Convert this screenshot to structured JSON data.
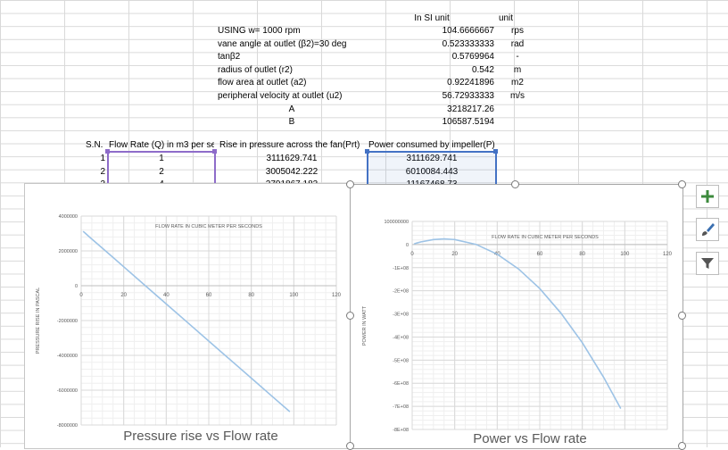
{
  "sheet": {
    "header_si": "In SI unit",
    "header_unit": "unit",
    "params": [
      {
        "label": "USING w= 1000 rpm",
        "value": "104.6666667",
        "unit": "rps"
      },
      {
        "label": "vane angle at outlet (β2)=30 deg",
        "value": "0.523333333",
        "unit": "rad"
      },
      {
        "label": "tanβ2",
        "value": "0.5769964",
        "unit": "-"
      },
      {
        "label": "radius of outlet (r2)",
        "value": "0.542",
        "unit": "m"
      },
      {
        "label": "flow area at outlet (a2)",
        "value": "0.92241896",
        "unit": "m2"
      },
      {
        "label": "peripheral velocity at outlet (u2)",
        "value": "56.72933333",
        "unit": "m/s"
      },
      {
        "label": "A",
        "value": "3218217.26",
        "unit": ""
      },
      {
        "label": "B",
        "value": "106587.5194",
        "unit": ""
      }
    ],
    "table_headers": [
      "S.N.",
      "Flow Rate (Q) in m3 per se",
      "Rise in pressure across the fan(Prt)",
      "Power consumed by impeller(P)"
    ],
    "rows": [
      [
        "1",
        "1",
        "3111629.741",
        "3111629.741"
      ],
      [
        "2",
        "2",
        "3005042.222",
        "6010084.443"
      ],
      [
        "3",
        "4",
        "2791867.183",
        "11167468.73"
      ]
    ]
  },
  "side_buttons": [
    {
      "name": "add-chart-element",
      "icon": "plus-icon",
      "color": "#3c8a3c"
    },
    {
      "name": "chart-styles",
      "icon": "paintbrush-icon",
      "color": "#3a6fb0"
    },
    {
      "name": "chart-filters",
      "icon": "filter-icon",
      "color": "#555555"
    }
  ],
  "chart_data": [
    {
      "type": "line",
      "title": "FLOW RATE IN CUBIC METER PER SECONDS",
      "caption": "Pressure rise vs Flow rate",
      "xlabel": "",
      "ylabel": "PRESSURE RISE IN PASCAL",
      "xlim": [
        0,
        120
      ],
      "ylim": [
        -8000000,
        4000000
      ],
      "x_ticks": [
        "0",
        "20",
        "40",
        "60",
        "80",
        "100",
        "120"
      ],
      "y_ticks": [
        "4000000",
        "2000000",
        "0",
        "-2000000",
        "-4000000",
        "-6000000",
        "-8000000"
      ],
      "grid": true,
      "series": [
        {
          "x": [
            1,
            2,
            4,
            10,
            20,
            30,
            40,
            50,
            60,
            70,
            80,
            90,
            98
          ],
          "y": [
            3111629.741,
            3005042.222,
            2791867.183,
            2152341.8,
            1086467,
            20592,
            -1045283,
            -2111158,
            -3177033,
            -4242908,
            -5308783,
            -6374658,
            -7227357
          ]
        }
      ],
      "color": "#9dc3e6"
    },
    {
      "type": "line",
      "title": "FLOW RATE IN CUBIC METER PER SECONDS",
      "caption": "Power vs Flow rate",
      "xlabel": "",
      "ylabel": "POWER IN WATT",
      "xlim": [
        0,
        120
      ],
      "ylim": [
        -800000000,
        100000000
      ],
      "x_ticks": [
        "0",
        "20",
        "40",
        "60",
        "80",
        "100",
        "120"
      ],
      "y_ticks": [
        "100000000",
        "0",
        "-1E+08",
        "-2E+08",
        "-3E+08",
        "-4E+08",
        "-5E+08",
        "-6E+08",
        "-7E+08",
        "-8E+08"
      ],
      "grid": true,
      "series": [
        {
          "x": [
            1,
            2,
            4,
            10,
            15,
            20,
            30,
            40,
            50,
            60,
            70,
            80,
            90,
            98
          ],
          "y": [
            3111629.741,
            6010084.443,
            11167468.73,
            21523418,
            24276000,
            21729340,
            617760,
            -41811320,
            -105557900,
            -190622000,
            -297003560,
            -424702640,
            -573719220,
            -708281000
          ]
        }
      ],
      "color": "#9dc3e6"
    }
  ]
}
